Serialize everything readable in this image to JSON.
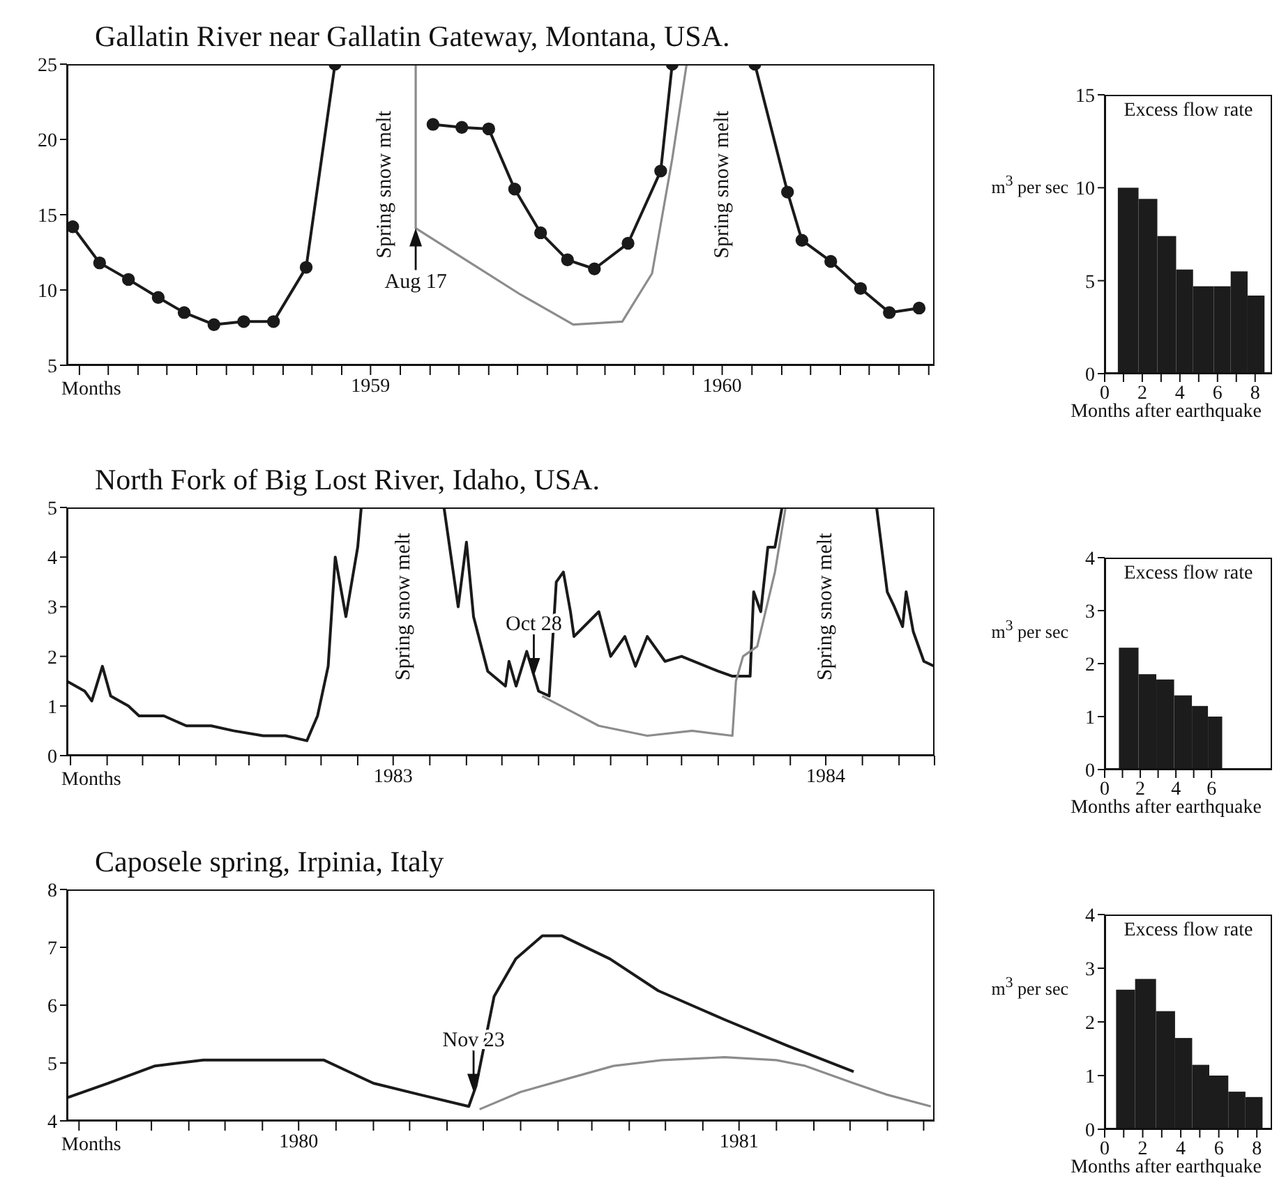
{
  "chart_data": [
    {
      "type": "line",
      "title": "Gallatin River near Gallatin Gateway, Montana, USA.",
      "xlabel": "Months",
      "xlim": [
        "1958-08-19",
        "1961-02-07"
      ],
      "ylim": [
        5,
        25
      ],
      "yticks": [
        5,
        10,
        15,
        20,
        25
      ],
      "xticks": [
        {
          "value": "1958-09",
          "label": null
        },
        {
          "value": "1958-10",
          "label": null
        },
        {
          "value": "1958-11",
          "label": null
        },
        {
          "value": "1958-12",
          "label": null
        },
        {
          "value": "1959-01",
          "label": null
        },
        {
          "value": "1959-02",
          "label": null
        },
        {
          "value": "1959-03",
          "label": null
        },
        {
          "value": "1959-04",
          "label": null
        },
        {
          "value": "1959-05",
          "label": null
        },
        {
          "value": "1959-06",
          "label": null
        },
        {
          "value": "1959-07",
          "label": "1959"
        },
        {
          "value": "1959-08",
          "label": null
        },
        {
          "value": "1959-09",
          "label": null
        },
        {
          "value": "1959-10",
          "label": null
        },
        {
          "value": "1959-11",
          "label": null
        },
        {
          "value": "1959-12",
          "label": null
        },
        {
          "value": "1960-01",
          "label": null
        },
        {
          "value": "1960-02",
          "label": null
        },
        {
          "value": "1960-03",
          "label": null
        },
        {
          "value": "1960-04",
          "label": null
        },
        {
          "value": "1960-05",
          "label": null
        },
        {
          "value": "1960-06",
          "label": null
        },
        {
          "value": "1960-07",
          "label": "1960"
        },
        {
          "value": "1960-08",
          "label": null
        },
        {
          "value": "1960-09",
          "label": null
        },
        {
          "value": "1960-10",
          "label": null
        },
        {
          "value": "1960-11",
          "label": null
        },
        {
          "value": "1960-12",
          "label": null
        },
        {
          "value": "1961-01",
          "label": null
        },
        {
          "value": "1961-02",
          "label": null
        }
      ],
      "series": [
        {
          "color": "#1a1a1a",
          "marker": "circle",
          "x": [
            "1958-08-25",
            "1958-09-22",
            "1958-10-22",
            "1958-11-22",
            "1958-12-19",
            "1959-01-19",
            "1959-02-19",
            "1959-03-22",
            "1959-04-25",
            "1959-05-25",
            "1959-07-16",
            "1959-09-04",
            "1959-10-04",
            "1959-11-01",
            "1959-11-28",
            "1959-12-25",
            "1960-01-22",
            "1960-02-19",
            "1960-03-25",
            "1960-04-28",
            "1960-05-10",
            "1960-07-01",
            "1960-08-04",
            "1960-09-07",
            "1960-09-22",
            "1960-10-22",
            "1960-11-22",
            "1960-12-22",
            "1961-01-22"
          ],
          "values": [
            14.2,
            11.8,
            10.7,
            9.5,
            8.5,
            7.7,
            7.9,
            7.9,
            11.5,
            25,
            null,
            21.0,
            20.8,
            20.7,
            16.7,
            13.8,
            12.0,
            11.4,
            13.1,
            17.9,
            25,
            null,
            25,
            16.5,
            13.3,
            11.9,
            10.1,
            8.5,
            8.8
          ]
        },
        {
          "color": "#8c8c8c",
          "x": [
            "1959-08-17",
            "1959-08-17",
            "1959-10-13",
            "1959-12-04",
            "1960-01-28",
            "1960-03-19",
            "1960-04-19",
            "1960-05-10",
            "1960-05-25"
          ],
          "values": [
            25,
            14.1,
            11.8,
            9.7,
            7.7,
            7.9,
            11.1,
            18.7,
            25
          ]
        }
      ],
      "annotations": [
        "Spring snow melt",
        "Spring snow melt",
        {
          "text": "Aug 17",
          "x": "1959-08-17",
          "y": 14.1
        }
      ]
    },
    {
      "type": "histogram",
      "title": "Excess flow rate",
      "xlabel": "Months after earthquake",
      "ylabel": "m$^{3}$ per sec",
      "bins": [
        0.7,
        1.8,
        2.8,
        3.8,
        4.7,
        5.8,
        6.7,
        7.6,
        8.5
      ],
      "values": [
        10,
        9.4,
        7.4,
        5.6,
        4.7,
        4.7,
        5.5,
        4.2
      ],
      "color": "#1c1c1c",
      "xlim": [
        0,
        8.9
      ],
      "xticks": [
        0,
        {
          "value": 1,
          "label": null
        },
        2,
        {
          "value": 3,
          "label": null
        },
        4,
        {
          "value": 5,
          "label": null
        },
        6,
        {
          "value": 7,
          "label": null
        },
        8
      ],
      "ylim": [
        0,
        15
      ],
      "yticks": [
        0,
        5,
        10,
        15
      ]
    },
    {
      "type": "line",
      "title": "North Fork of Big Lost River, Idaho, USA.",
      "xlabel": "Months",
      "xlim": [
        "1982-09-28",
        "1984-10-01"
      ],
      "ylim": [
        0,
        5
      ],
      "yticks": [
        0,
        1,
        2,
        3,
        4,
        5
      ],
      "xticks": [
        {
          "value": "1982-10",
          "label": null
        },
        {
          "value": "1982-11",
          "label": null
        },
        {
          "value": "1982-12",
          "label": null
        },
        {
          "value": "1983-01",
          "label": null
        },
        {
          "value": "1983-02",
          "label": null
        },
        {
          "value": "1983-03",
          "label": null
        },
        {
          "value": "1983-04",
          "label": null
        },
        {
          "value": "1983-05",
          "label": null
        },
        {
          "value": "1983-06",
          "label": null
        },
        {
          "value": "1983-07",
          "label": "1983"
        },
        {
          "value": "1983-08",
          "label": null
        },
        {
          "value": "1983-09",
          "label": null
        },
        {
          "value": "1983-10",
          "label": null
        },
        {
          "value": "1983-11",
          "label": null
        },
        {
          "value": "1983-12",
          "label": null
        },
        {
          "value": "1984-01",
          "label": null
        },
        {
          "value": "1984-02",
          "label": null
        },
        {
          "value": "1984-03",
          "label": null
        },
        {
          "value": "1984-04",
          "label": null
        },
        {
          "value": "1984-05",
          "label": null
        },
        {
          "value": "1984-06",
          "label": null
        },
        {
          "value": "1984-07",
          "label": "1984"
        },
        {
          "value": "1984-08",
          "label": null
        },
        {
          "value": "1984-09",
          "label": null
        },
        {
          "value": "1984-10",
          "label": null
        }
      ],
      "series": [
        {
          "color": "#1a1a1a",
          "x": [
            "1982-09-28",
            "1982-10-13",
            "1982-10-19",
            "1982-10-28",
            "1982-11-04",
            "1982-11-19",
            "1982-11-28",
            "1982-12-19",
            "1983-01-07",
            "1983-01-28",
            "1983-02-16",
            "1983-03-13",
            "1983-04-01",
            "1983-04-19",
            "1983-04-28",
            "1983-05-07",
            "1983-05-13",
            "1983-05-22",
            "1983-06-01",
            "1983-06-04",
            "1983-07-10",
            "1983-08-13",
            "1983-08-25",
            "1983-09-01",
            "1983-09-07",
            "1983-09-19",
            "1983-10-04",
            "1983-10-07",
            "1983-10-13",
            "1983-10-22",
            "1983-11-01",
            "1983-11-10",
            "1983-11-16",
            "1983-11-22",
            "1983-11-28",
            "1983-12-01",
            "1983-12-22",
            "1984-01-01",
            "1984-01-13",
            "1984-01-22",
            "1984-02-01",
            "1984-02-16",
            "1984-03-01",
            "1984-04-01",
            "1984-04-13",
            "1984-04-28",
            "1984-05-01",
            "1984-05-07",
            "1984-05-13",
            "1984-05-19",
            "1984-05-25",
            "1984-07-01",
            "1984-08-13",
            "1984-08-22",
            "1984-08-28",
            "1984-09-04",
            "1984-09-07",
            "1984-09-13",
            "1984-09-22",
            "1984-10-01"
          ],
          "values": [
            1.5,
            1.3,
            1.1,
            1.8,
            1.2,
            1.0,
            0.8,
            0.8,
            0.6,
            0.6,
            0.5,
            0.4,
            0.4,
            0.3,
            0.8,
            1.8,
            4.0,
            2.8,
            4.2,
            5,
            null,
            5,
            3.0,
            4.3,
            2.8,
            1.7,
            1.4,
            1.9,
            1.4,
            2.1,
            1.3,
            1.2,
            3.5,
            3.7,
            2.9,
            2.4,
            2.9,
            2.0,
            2.4,
            1.8,
            2.4,
            1.9,
            2.0,
            1.7,
            1.6,
            1.6,
            3.3,
            2.9,
            4.2,
            4.2,
            5,
            null,
            5,
            3.3,
            3.0,
            2.6,
            3.3,
            2.5,
            1.9,
            1.8
          ]
        },
        {
          "color": "#8c8c8c",
          "x": [
            "1983-11-04",
            "1983-11-28",
            "1983-12-22",
            "1984-02-01",
            "1984-03-10",
            "1984-04-13",
            "1984-04-16",
            "1984-04-22",
            "1984-05-04",
            "1984-05-19",
            "1984-05-28"
          ],
          "values": [
            1.2,
            0.9,
            0.6,
            0.4,
            0.5,
            0.4,
            1.5,
            2.0,
            2.2,
            3.7,
            5
          ]
        }
      ],
      "annotations": [
        "Spring snow melt",
        "Spring snow melt",
        {
          "text": "Oct 28",
          "x": "1983-10-28",
          "y": 1.6
        }
      ]
    },
    {
      "type": "histogram",
      "title": "Excess flow rate",
      "xlabel": "Months after earthquake",
      "ylabel": "m$^{3}$ per sec",
      "bins": [
        0.8,
        1.9,
        2.9,
        3.9,
        4.9,
        5.8,
        6.6
      ],
      "values": [
        2.3,
        1.8,
        1.7,
        1.4,
        1.2,
        1.0
      ],
      "color": "#1c1c1c",
      "xlim": [
        0,
        9.4
      ],
      "xticks": [
        0,
        {
          "value": 1,
          "label": null
        },
        2,
        {
          "value": 3,
          "label": null
        },
        4,
        {
          "value": 5,
          "label": null
        },
        6
      ],
      "ylim": [
        0,
        4
      ],
      "yticks": [
        0,
        1,
        2,
        3,
        4
      ]
    },
    {
      "type": "line",
      "title": "Caposele spring, Irpinia, Italy",
      "xlabel": "Months",
      "xlim": [
        "1979-12-22",
        "1981-12-10"
      ],
      "ylim": [
        4,
        8
      ],
      "yticks": [
        4,
        5,
        6,
        7,
        8
      ],
      "xticks": [
        {
          "value": "1980-01",
          "label": null
        },
        {
          "value": "1980-02",
          "label": null
        },
        {
          "value": "1980-03",
          "label": null
        },
        {
          "value": "1980-04",
          "label": null
        },
        {
          "value": "1980-05",
          "label": null
        },
        {
          "value": "1980-06",
          "label": null
        },
        {
          "value": "1980-07",
          "label": "1980"
        },
        {
          "value": "1980-08",
          "label": null
        },
        {
          "value": "1980-09",
          "label": null
        },
        {
          "value": "1980-10",
          "label": null
        },
        {
          "value": "1980-11",
          "label": null
        },
        {
          "value": "1980-12",
          "label": null
        },
        {
          "value": "1981-01",
          "label": null
        },
        {
          "value": "1981-02",
          "label": null
        },
        {
          "value": "1981-03",
          "label": null
        },
        {
          "value": "1981-04",
          "label": null
        },
        {
          "value": "1981-05",
          "label": null
        },
        {
          "value": "1981-06",
          "label": null
        },
        {
          "value": "1981-07",
          "label": "1981"
        },
        {
          "value": "1981-08",
          "label": null
        },
        {
          "value": "1981-09",
          "label": null
        },
        {
          "value": "1981-10",
          "label": null
        },
        {
          "value": "1981-11",
          "label": null
        },
        {
          "value": "1981-12",
          "label": null
        }
      ],
      "series": [
        {
          "color": "#1a1a1a",
          "x": [
            "1979-12-22",
            "1980-01-25",
            "1980-03-04",
            "1980-04-13",
            "1980-06-04",
            "1980-07-22",
            "1980-09-01",
            "1980-10-10",
            "1980-11-19",
            "1980-11-25",
            "1980-12-10",
            "1980-12-28",
            "1981-01-19",
            "1981-02-04",
            "1981-03-16",
            "1981-04-25",
            "1981-06-19",
            "1981-08-10",
            "1981-10-04"
          ],
          "values": [
            4.4,
            4.65,
            4.95,
            5.05,
            5.05,
            5.05,
            4.65,
            4.45,
            4.25,
            4.6,
            6.15,
            6.8,
            7.2,
            7.2,
            6.8,
            6.25,
            5.75,
            5.3,
            4.85
          ]
        },
        {
          "color": "#8c8c8c",
          "x": [
            "1980-11-28",
            "1981-01-01",
            "1981-02-04",
            "1981-03-19",
            "1981-04-28",
            "1981-06-19",
            "1981-08-01",
            "1981-08-25",
            "1981-10-04",
            "1981-11-01",
            "1981-12-07"
          ],
          "values": [
            4.2,
            4.5,
            4.7,
            4.95,
            5.05,
            5.1,
            5.05,
            4.95,
            4.65,
            4.45,
            4.25
          ]
        }
      ],
      "annotations": [
        {
          "text": "Nov 23",
          "x": "1980-11-23",
          "y": 4.5
        }
      ]
    },
    {
      "type": "histogram",
      "title": "Excess flow rate",
      "xlabel": "Months after earthquake",
      "ylabel": "m$^{3}$ per sec",
      "bins": [
        0.6,
        1.6,
        2.7,
        3.7,
        4.6,
        5.5,
        6.5,
        7.4,
        8.3
      ],
      "values": [
        2.6,
        2.8,
        2.2,
        1.7,
        1.2,
        1.0,
        0.7,
        0.6
      ],
      "color": "#1c1c1c",
      "xlim": [
        0,
        8.8
      ],
      "xticks": [
        0,
        {
          "value": 1,
          "label": null
        },
        2,
        {
          "value": 3,
          "label": null
        },
        4,
        {
          "value": 5,
          "label": null
        },
        6,
        {
          "value": 7,
          "label": null
        },
        8
      ],
      "ylim": [
        0,
        4
      ],
      "yticks": [
        0,
        1,
        2,
        3,
        4
      ]
    }
  ]
}
